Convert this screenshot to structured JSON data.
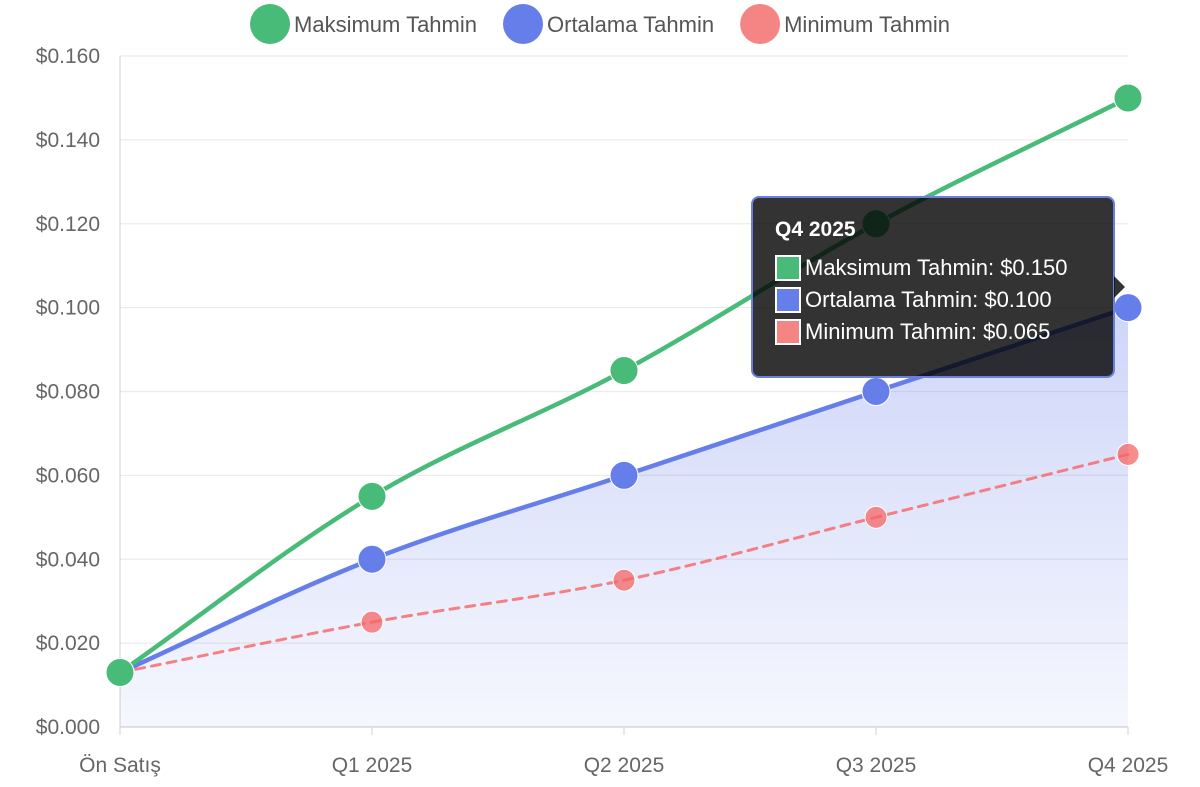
{
  "chart_data": {
    "type": "line",
    "categories": [
      "Ön Satış",
      "Q1 2025",
      "Q2 2025",
      "Q3 2025",
      "Q4 2025"
    ],
    "series": [
      {
        "name": "Maksimum Tahmin",
        "values": [
          0.013,
          0.055,
          0.085,
          0.12,
          0.15
        ],
        "color": "#48bb78",
        "style": "solid"
      },
      {
        "name": "Ortalama Tahmin",
        "values": [
          0.013,
          0.04,
          0.06,
          0.08,
          0.1
        ],
        "color": "#667eea",
        "style": "solid",
        "fill": true
      },
      {
        "name": "Minimum Tahmin",
        "values": [
          0.013,
          0.025,
          0.035,
          0.05,
          0.065
        ],
        "color": "#f56565",
        "style": "dashed"
      }
    ],
    "ylim": [
      0,
      0.16
    ],
    "yticks": [
      "$0.000",
      "$0.020",
      "$0.040",
      "$0.060",
      "$0.080",
      "$0.100",
      "$0.120",
      "$0.140",
      "$0.160"
    ],
    "grid": true,
    "legend_position": "top"
  },
  "tooltip": {
    "title": "Q4 2025",
    "rows": [
      {
        "label": "Maksimum Tahmin: $0.150",
        "color": "#48bb78"
      },
      {
        "label": "Ortalama Tahmin: $0.100",
        "color": "#667eea"
      },
      {
        "label": "Minimum Tahmin: $0.065",
        "color": "#f58585"
      }
    ]
  }
}
